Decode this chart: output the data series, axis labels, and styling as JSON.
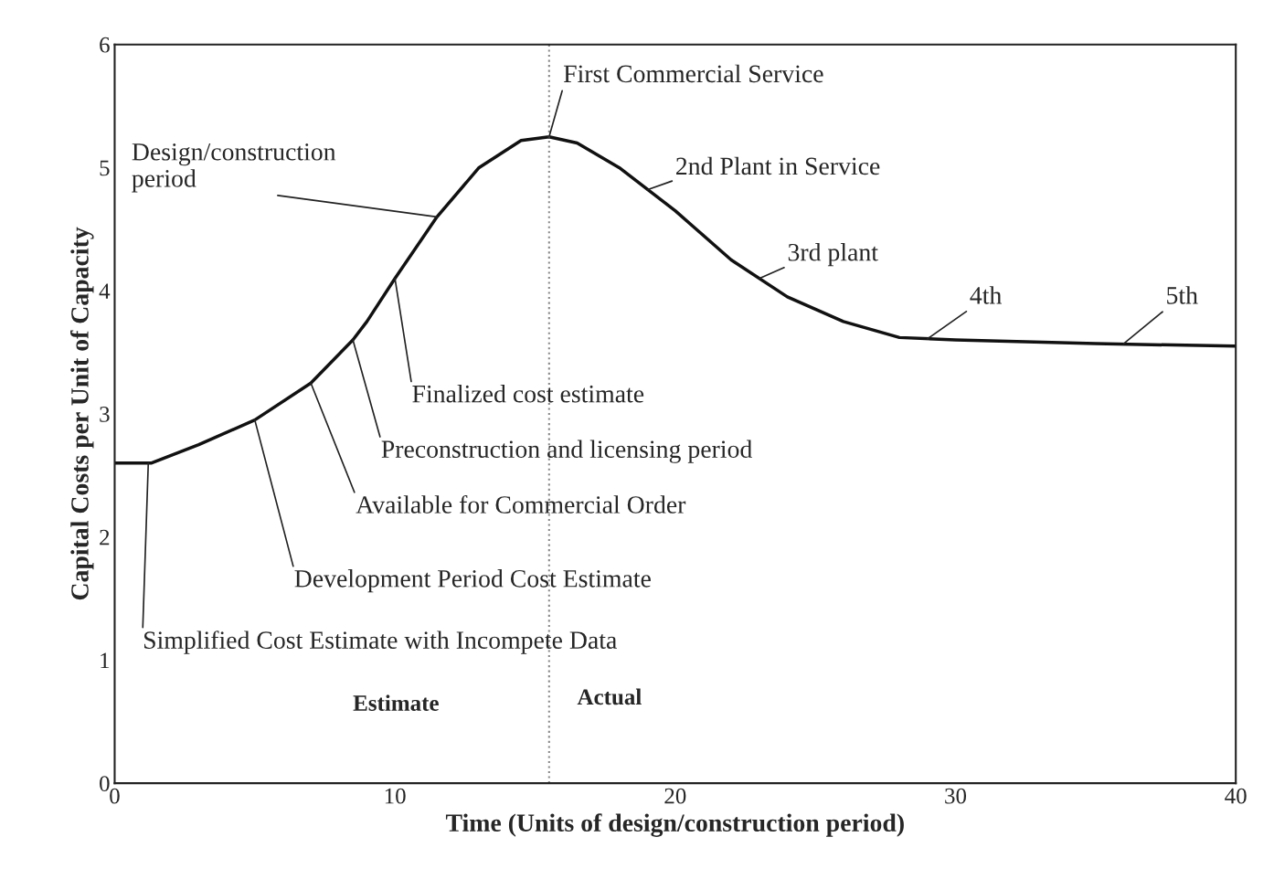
{
  "chart_data": {
    "type": "line",
    "xlabel": "Time (Units of design/construction period)",
    "ylabel": "Capital Costs per Unit of Capacity",
    "x": [
      0,
      1.3,
      3,
      5,
      7,
      8.5,
      9,
      10,
      11.5,
      13,
      14.5,
      15.5,
      16.5,
      18,
      20,
      22,
      24,
      26,
      28,
      30,
      35,
      40
    ],
    "series": [
      {
        "color": "#111111",
        "values": [
          2.6,
          2.6,
          2.75,
          2.95,
          3.25,
          3.6,
          3.75,
          4.1,
          4.6,
          5.0,
          5.22,
          5.25,
          5.2,
          5.0,
          4.65,
          4.25,
          3.95,
          3.75,
          3.62,
          3.6,
          3.57,
          3.55
        ]
      }
    ],
    "xlim": [
      0,
      40
    ],
    "ylim": [
      0,
      6
    ],
    "xticks": [
      0,
      10,
      20,
      30,
      40
    ],
    "yticks": [
      0,
      1,
      2,
      3,
      4,
      5,
      6
    ],
    "grid": false,
    "marker": "none",
    "line_style": "solid",
    "ref_lines": [
      {
        "axis": "x",
        "value": 15.5,
        "label": null,
        "color": "#888888",
        "line_style": "dotted"
      }
    ],
    "annotations": [
      {
        "text": "First Commercial Service",
        "x": 15.5,
        "y": 5.25
      },
      {
        "text": "Design/construction\nperiod",
        "x": 11.5,
        "y": 4.6
      },
      {
        "text": "2nd Plant in Service",
        "x": 19,
        "y": 4.82
      },
      {
        "text": "3rd plant",
        "x": 23,
        "y": 4.1
      },
      {
        "text": "4th",
        "x": 29,
        "y": 3.61
      },
      {
        "text": "5th",
        "x": 36,
        "y": 3.57
      },
      {
        "text": "Finalized cost estimate",
        "x": 10,
        "y": 4.1
      },
      {
        "text": "Preconstruction and licensing period",
        "x": 8.5,
        "y": 3.6
      },
      {
        "text": "Available for Commercial Order",
        "x": 7,
        "y": 3.25
      },
      {
        "text": "Development Period Cost Estimate",
        "x": 5,
        "y": 2.95
      },
      {
        "text": "Simplified Cost Estimate with Incompete Data",
        "x": 1.2,
        "y": 2.6
      },
      "Estimate",
      "Actual"
    ]
  }
}
